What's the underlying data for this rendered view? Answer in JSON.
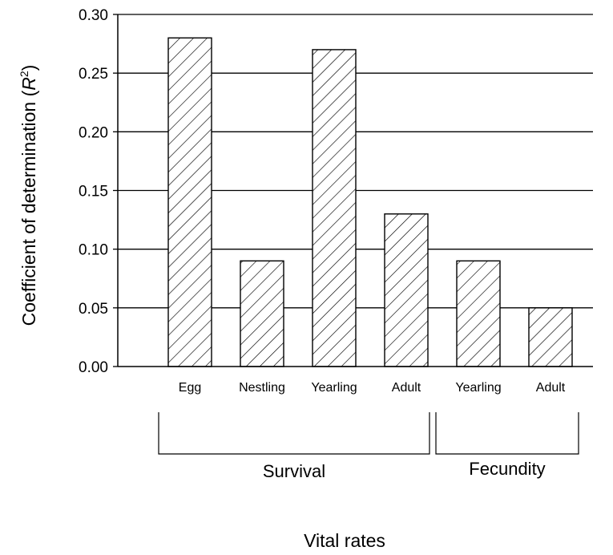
{
  "chart_data": {
    "type": "bar",
    "title": "",
    "xlabel": "Vital rates",
    "ylabel": "Coefficient of determination (R²)",
    "ylabel_parts": {
      "prefix": "Coefficient of determination (",
      "var": "R",
      "sup": "2",
      "suffix": ")"
    },
    "ylim": [
      0,
      0.3
    ],
    "yticks": [
      "0.00",
      "0.05",
      "0.10",
      "0.15",
      "0.20",
      "0.25",
      "0.30"
    ],
    "grid": true,
    "categories": [
      "Egg",
      "Nestling",
      "Yearling",
      "Adult",
      "Yearling",
      "Adult"
    ],
    "values": [
      0.28,
      0.09,
      0.27,
      0.13,
      0.09,
      0.05
    ],
    "groups": [
      {
        "label": "Survival",
        "categories": [
          "Egg",
          "Nestling",
          "Yearling",
          "Adult"
        ]
      },
      {
        "label": "Fecundity",
        "categories": [
          "Yearling",
          "Adult"
        ]
      }
    ],
    "bar_fill": "hatched",
    "colors": {
      "bar_stroke": "#000000",
      "hatch": "#000000",
      "grid": "#000000",
      "background": "#ffffff"
    }
  }
}
